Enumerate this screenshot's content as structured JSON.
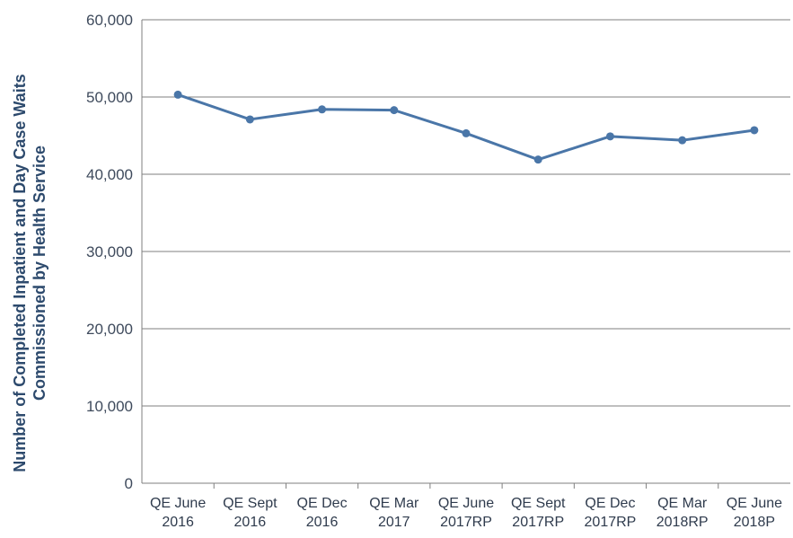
{
  "chart_data": {
    "type": "line",
    "categories": [
      [
        "QE June",
        "2016"
      ],
      [
        "QE Sept",
        "2016"
      ],
      [
        "QE Dec",
        "2016"
      ],
      [
        "QE Mar",
        "2017"
      ],
      [
        "QE June",
        "2017RP"
      ],
      [
        "QE Sept",
        "2017RP"
      ],
      [
        "QE Dec",
        "2017RP"
      ],
      [
        "QE Mar",
        "2018RP"
      ],
      [
        "QE June",
        "2018P"
      ]
    ],
    "series": [
      {
        "values": [
          50300,
          47100,
          48400,
          48300,
          45300,
          41900,
          44900,
          44400,
          45700
        ],
        "color": "#4a76a8"
      }
    ],
    "ylabel": [
      "Number of Completed Inpatient and Day Case Waits",
      "Commissioned by Health Service"
    ],
    "ylim": [
      0,
      60000
    ],
    "yticks": [
      "0",
      "10,000",
      "20,000",
      "30,000",
      "40,000",
      "50,000",
      "60,000"
    ],
    "ytick_values": [
      0,
      10000,
      20000,
      30000,
      40000,
      50000,
      60000
    ],
    "grid": "horizontal",
    "colors": {
      "line": "#4a76a8",
      "grid": "#7f7f7f",
      "axis": "#7f7f7f",
      "label": "#2d4a6d"
    }
  }
}
